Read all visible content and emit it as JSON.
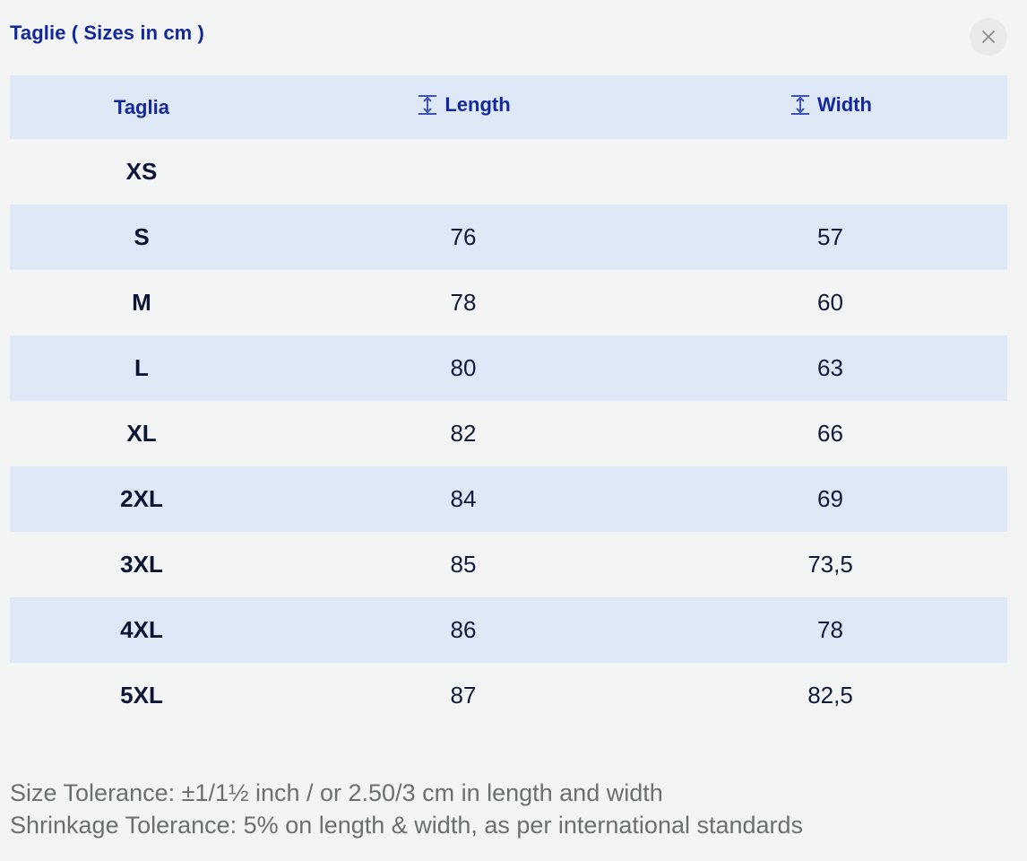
{
  "modal": {
    "title": "Taglie ( Sizes in cm )",
    "close_icon": "close-icon"
  },
  "table": {
    "headers": {
      "size": "Taglia",
      "length": "Length",
      "width": "Width",
      "measure_icon": "vertical-measure-icon"
    },
    "rows": [
      {
        "size": "XS",
        "length": "",
        "width": ""
      },
      {
        "size": "S",
        "length": "76",
        "width": "57"
      },
      {
        "size": "M",
        "length": "78",
        "width": "60"
      },
      {
        "size": "L",
        "length": "80",
        "width": "63"
      },
      {
        "size": "XL",
        "length": "82",
        "width": "66"
      },
      {
        "size": "2XL",
        "length": "84",
        "width": "69"
      },
      {
        "size": "3XL",
        "length": "85",
        "width": "73,5"
      },
      {
        "size": "4XL",
        "length": "86",
        "width": "78"
      },
      {
        "size": "5XL",
        "length": "87",
        "width": "82,5"
      }
    ]
  },
  "footnotes": {
    "size_tolerance": "Size Tolerance: ±1/1½ inch / or 2.50/3 cm in length and width",
    "shrinkage_tolerance": "Shrinkage Tolerance: 5% on length & width, as per international standards"
  },
  "colors": {
    "accent": "#12289a",
    "row_stripe": "#dfe8f6",
    "background": "#f3f5f4",
    "body_text": "#111a3d",
    "note_text": "#6a6f6f"
  }
}
